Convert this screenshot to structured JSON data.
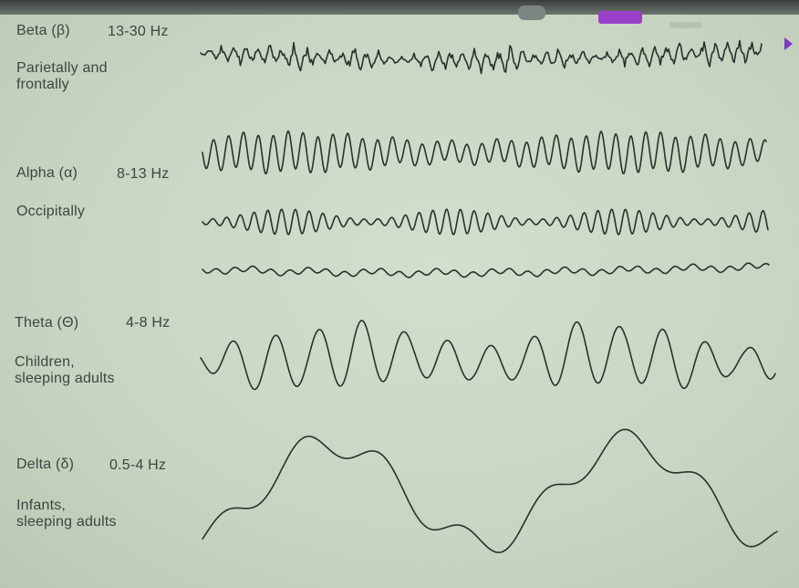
{
  "bands": [
    {
      "name": "Beta (β)",
      "range": "13-30 Hz",
      "location": "Parietally and\nfrontally"
    },
    {
      "name": "Alpha (α)",
      "range": "8-13 Hz",
      "location": "Occipitally"
    },
    {
      "name": "Theta (Θ)",
      "range": "4-8 Hz",
      "location": "Children,\nsleeping adults"
    },
    {
      "name": "Delta (δ)",
      "range": "0.5-4 Hz",
      "location": "Infants,\nsleeping adults"
    }
  ],
  "colors": {
    "background": "#c9d6c3",
    "text": "#3d4640",
    "trace": "#2b302c",
    "accent": "#9b40c8"
  }
}
